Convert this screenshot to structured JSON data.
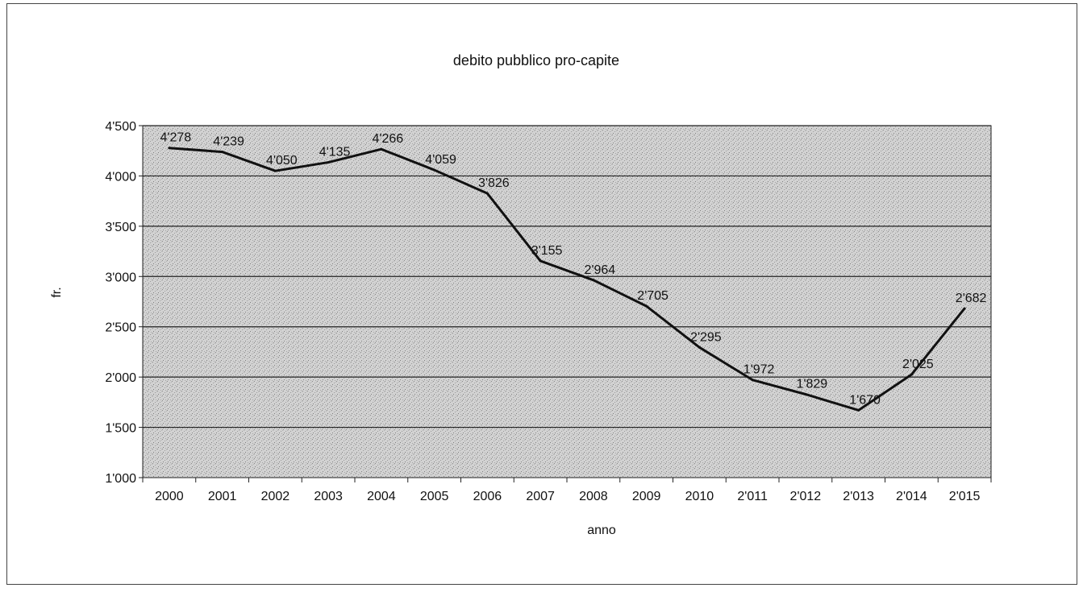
{
  "chart_data": {
    "type": "line",
    "title": "debito pubblico pro-capite",
    "xlabel": "anno",
    "ylabel": "fr.",
    "categories": [
      "2000",
      "2001",
      "2002",
      "2003",
      "2004",
      "2005",
      "2006",
      "2007",
      "2008",
      "2009",
      "2010",
      "2'011",
      "2'012",
      "2'013",
      "2'014",
      "2'015"
    ],
    "series": [
      {
        "values": [
          4278,
          4239,
          4050,
          4135,
          4266,
          4059,
          3826,
          3155,
          2964,
          2705,
          2295,
          1972,
          1829,
          1670,
          2025,
          2682
        ],
        "labels": [
          "4'278",
          "4'239",
          "4'050",
          "4'135",
          "4'266",
          "4'059",
          "3'826",
          "3'155",
          "2'964",
          "2'705",
          "2'295",
          "1'972",
          "1'829",
          "1'670",
          "2'025",
          "2'682"
        ],
        "color": "#111111"
      }
    ],
    "ylim": [
      1000,
      4500
    ],
    "yticks": [
      1000,
      1500,
      2000,
      2500,
      3000,
      3500,
      4000,
      4500
    ],
    "ytick_labels": [
      "1'000",
      "1'500",
      "2'000",
      "2'500",
      "3'000",
      "3'500",
      "4'000",
      "4'500"
    ],
    "grid": true,
    "legend": "none",
    "colors": {
      "plot_bg": "#cfcfcf",
      "grid": "#222222",
      "line": "#111111"
    }
  }
}
